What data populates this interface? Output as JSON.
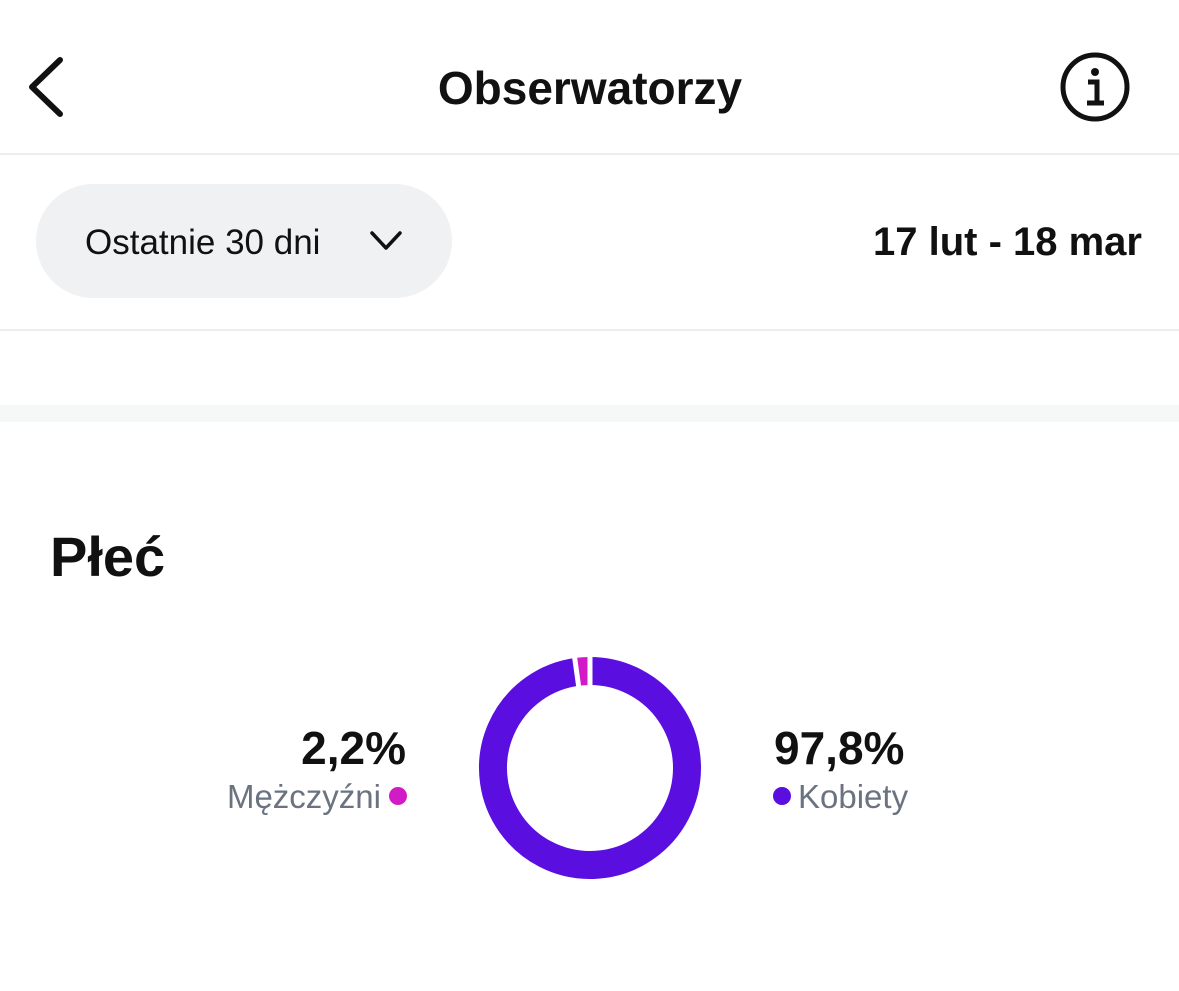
{
  "header": {
    "title": "Obserwatorzy"
  },
  "filter": {
    "period": "Ostatnie 30 dni",
    "range": "17 lut - 18 mar"
  },
  "chart_data": {
    "type": "donut",
    "title": "Płeć",
    "categories": [
      "Mężczyźni",
      "Kobiety"
    ],
    "values": [
      2.2,
      97.8
    ],
    "value_labels": [
      "2,2%",
      "97,8%"
    ],
    "colors": [
      "#d21bc6",
      "#5a0ee0"
    ]
  }
}
